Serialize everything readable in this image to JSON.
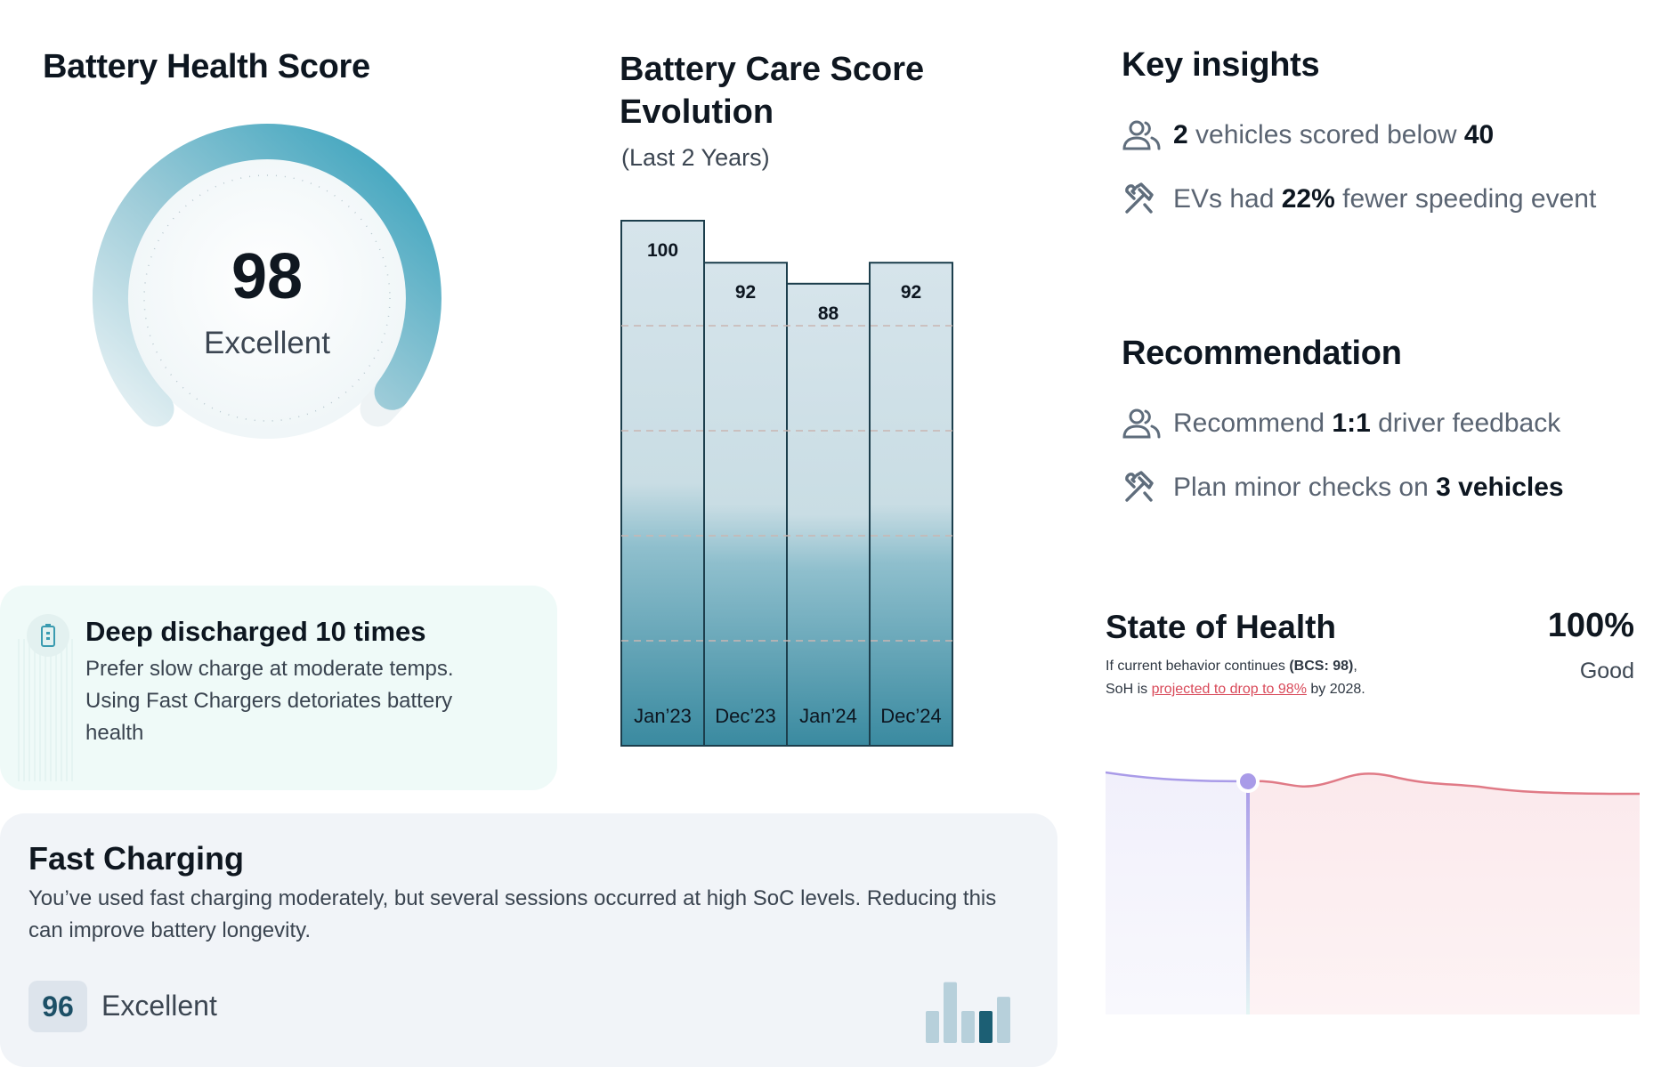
{
  "health": {
    "title": "Battery Health Score",
    "score": "98",
    "label": "Excellent",
    "gauge_level": 0.98
  },
  "discharge": {
    "icon": "battery-icon",
    "title": "Deep discharged 10 times",
    "text": "Prefer slow charge at moderate temps. Using Fast Chargers detoriates battery health"
  },
  "care": {
    "title": "Battery Care Score Evolution",
    "subtitle": "(Last 2 Years)"
  },
  "chart_data": {
    "type": "bar",
    "title": "Battery Care Score Evolution",
    "subtitle": "(Last 2 Years)",
    "categories": [
      "Jan’23",
      "Dec’23",
      "Jan’24",
      "Dec’24"
    ],
    "values": [
      100,
      92,
      88,
      92
    ],
    "value_labels": [
      "100",
      "92",
      "88",
      "92"
    ],
    "ylim": [
      0,
      100
    ],
    "grid": true,
    "colors": {
      "bar_top": "#d4e3ea",
      "bar_bottom": "#3a8aa0",
      "border": "#1c3e4c",
      "grid": "#c9b6b2"
    }
  },
  "fast": {
    "title": "Fast Charging",
    "text": "You’ve used fast charging moderately, but several sessions occurred at high SoC levels. Reducing this can improve battery longevity.",
    "score": "96",
    "label": "Excellent",
    "mini_bars": [
      0.5,
      0.95,
      0.5,
      0.5,
      0.72
    ],
    "highlight_index": 3
  },
  "insights": {
    "title": "Key insights",
    "items": [
      {
        "icon": "people-icon",
        "pre": "",
        "b1": "2",
        "mid": " vehicles scored below ",
        "b2": "40",
        "post": ""
      },
      {
        "icon": "tools-icon",
        "pre": "EVs had ",
        "b1": "22%",
        "mid": " fewer speeding event",
        "b2": "",
        "post": ""
      }
    ]
  },
  "recommendation": {
    "title": "Recommendation",
    "items": [
      {
        "icon": "people-icon",
        "pre": "Recommend ",
        "b1": "1:1",
        "mid": " driver feedback",
        "b2": "",
        "post": ""
      },
      {
        "icon": "tools-icon",
        "pre": "Plan minor checks on ",
        "b1": "3 vehicles",
        "mid": "",
        "b2": "",
        "post": ""
      }
    ]
  },
  "soh": {
    "title": "State of Health",
    "value": "100%",
    "status": "Good",
    "note_pre": "If current behavior continues ",
    "note_bold": "(BCS: 98)",
    "note_mid": ",",
    "note_line2_pre": "SoH is ",
    "note_link": "projected to drop to 98%",
    "note_post": " by 2028.",
    "colors": {
      "history": "#a99be8",
      "projection": "#e07a86",
      "marker": "#a99be8"
    }
  },
  "colors": {
    "accent": "#3aa3be",
    "gauge_light": "#cfe6ee",
    "card_mint": "#effaf8",
    "card_gray": "#f1f4f8"
  }
}
